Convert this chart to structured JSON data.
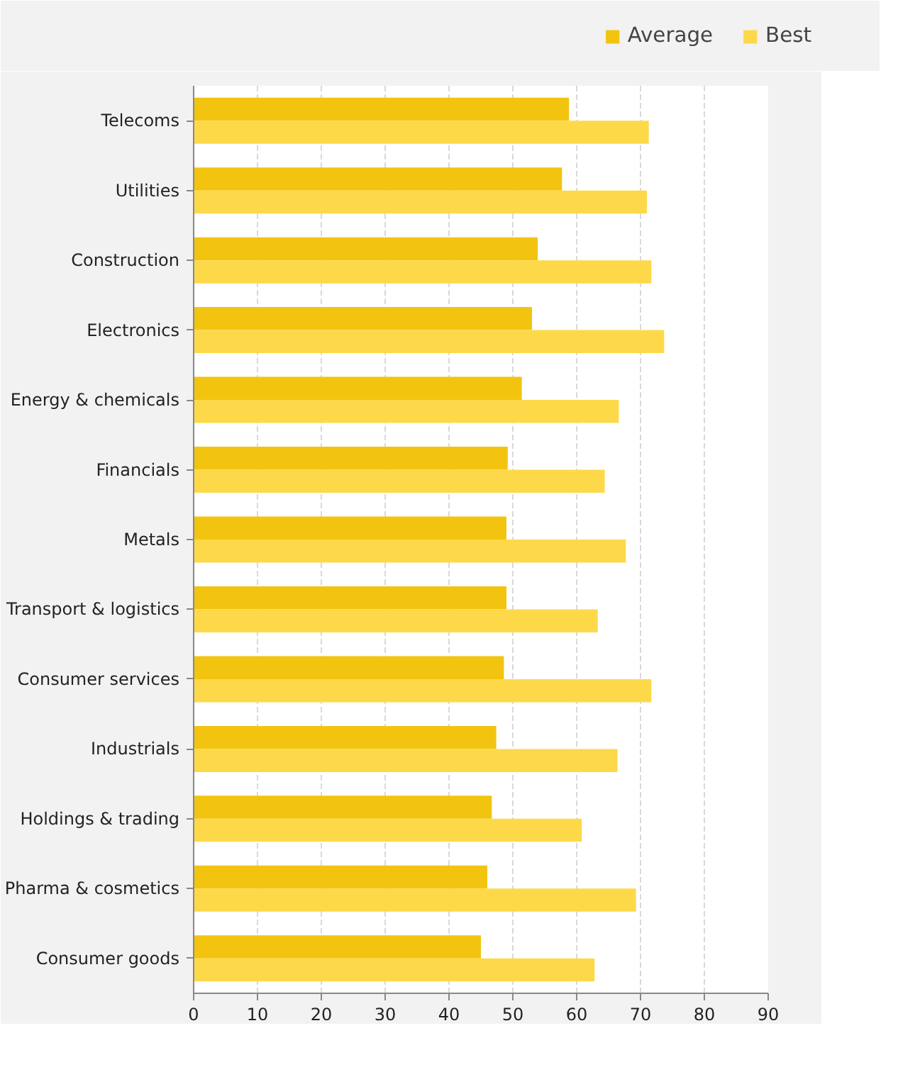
{
  "chart_data": {
    "type": "bar",
    "orientation": "horizontal",
    "categories": [
      "Telecoms",
      "Utilities",
      "Construction",
      "Electronics",
      "Energy & chemicals",
      "Financials",
      "Metals",
      "Transport & logistics",
      "Consumer services",
      "Industrials",
      "Holdings & trading",
      "Pharma & cosmetics",
      "Consumer goods"
    ],
    "series": [
      {
        "name": "Average",
        "color": "#f2c40f",
        "values": [
          58.8,
          57.7,
          53.9,
          53.0,
          51.4,
          49.2,
          49.0,
          49.0,
          48.6,
          47.4,
          46.7,
          46.0,
          45.0
        ]
      },
      {
        "name": "Best",
        "color": "#fdd94a",
        "values": [
          71.3,
          71.0,
          71.7,
          73.7,
          66.6,
          64.4,
          67.7,
          63.3,
          71.7,
          66.4,
          60.8,
          69.3,
          62.8
        ]
      }
    ],
    "xlim": [
      0,
      90
    ],
    "xticks": [
      0,
      10,
      20,
      30,
      40,
      50,
      60,
      70,
      80,
      90
    ],
    "grid": "x",
    "legend": "top right"
  }
}
